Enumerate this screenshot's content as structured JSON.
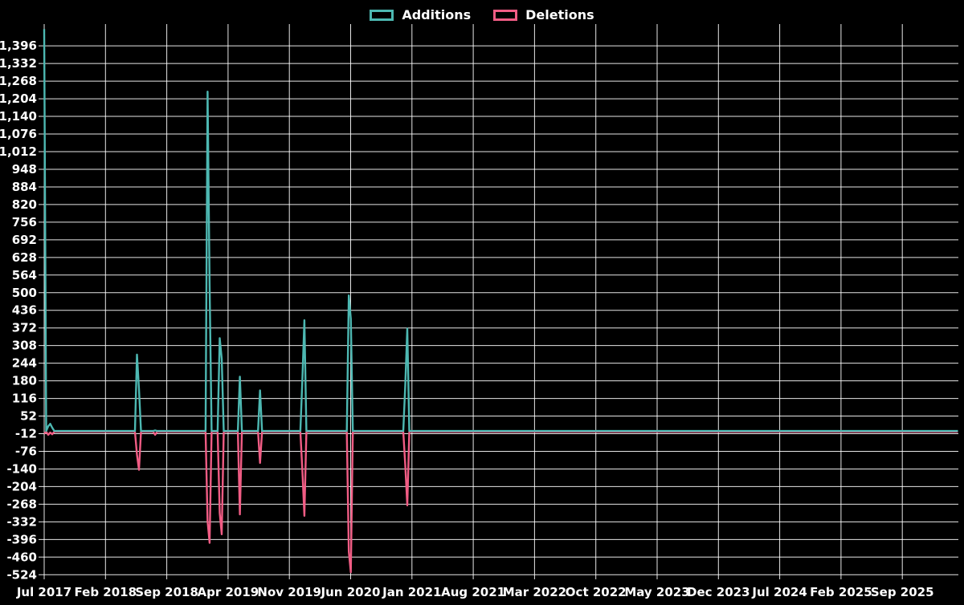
{
  "legend": {
    "items": [
      {
        "label": "Additions",
        "color": "#4db8b2"
      },
      {
        "label": "Deletions",
        "color": "#f05c84"
      }
    ]
  },
  "chart_data": {
    "type": "line",
    "title": "",
    "xlabel": "",
    "ylabel": "",
    "background_color": "#000000",
    "grid": true,
    "grid_color": "#ffffff",
    "text_color": "#ffffff",
    "legend_position": "top-center",
    "y_axis": {
      "min": -524,
      "max": 1396,
      "step": 64,
      "tick_labels": [
        "1,396",
        "1,332",
        "1,268",
        "1,204",
        "1,140",
        "1,076",
        "1,012",
        "948",
        "884",
        "820",
        "756",
        "692",
        "628",
        "564",
        "500",
        "436",
        "372",
        "308",
        "244",
        "180",
        "116",
        "52",
        "-12",
        "-76",
        "-140",
        "-204",
        "-268",
        "-332",
        "-396",
        "-460",
        "-524"
      ]
    },
    "x_axis": {
      "start": "Jul 2017",
      "end": "Sep 2025",
      "tick_interval_months": 7,
      "tick_labels": [
        "Jul 2017",
        "Feb 2018",
        "Sep 2018",
        "Apr 2019",
        "Nov 2019",
        "Jun 2020",
        "Jan 2021",
        "Aug 2021",
        "Mar 2022",
        "Oct 2022",
        "May 2023",
        "Dec 2023",
        "Jul 2024",
        "Feb 2025",
        "Sep 2025"
      ]
    },
    "series": [
      {
        "name": "Additions",
        "color": "#4db8b2",
        "baseline_value": -2
      },
      {
        "name": "Deletions",
        "color": "#f05c84",
        "baseline_value": -5
      }
    ],
    "weeks_total": 453,
    "points": [
      {
        "week": 0,
        "approx_date": "Jul 2017",
        "additions": 1457,
        "deletions": -12
      },
      {
        "week": 2,
        "approx_date": "Jul 2017",
        "additions": 15,
        "deletions": -16
      },
      {
        "week": 3,
        "approx_date": "Jul 2017",
        "additions": 24,
        "deletions": -8
      },
      {
        "week": 4,
        "approx_date": "Aug 2017",
        "additions": 10,
        "deletions": -14
      },
      {
        "week": 46,
        "approx_date": "May 2018",
        "additions": 275,
        "deletions": -88
      },
      {
        "week": 47,
        "approx_date": "Jun 2018",
        "additions": 150,
        "deletions": -143
      },
      {
        "week": 55,
        "approx_date": "Jul 2018",
        "additions": 0,
        "deletions": -16
      },
      {
        "week": 81,
        "approx_date": "Jan 2019",
        "additions": 1230,
        "deletions": -330
      },
      {
        "week": 82,
        "approx_date": "Feb 2019",
        "additions": 530,
        "deletions": -408
      },
      {
        "week": 87,
        "approx_date": "Mar 2019",
        "additions": 335,
        "deletions": -300
      },
      {
        "week": 88,
        "approx_date": "Mar 2019",
        "additions": 260,
        "deletions": -377
      },
      {
        "week": 97,
        "approx_date": "May 2019",
        "additions": 195,
        "deletions": -305
      },
      {
        "week": 107,
        "approx_date": "Jul 2019",
        "additions": 145,
        "deletions": -118
      },
      {
        "week": 128,
        "approx_date": "Dec 2019",
        "additions": 185,
        "deletions": -146
      },
      {
        "week": 129,
        "approx_date": "Dec 2019",
        "additions": 400,
        "deletions": -310
      },
      {
        "week": 151,
        "approx_date": "May 2020",
        "additions": 490,
        "deletions": -440
      },
      {
        "week": 152,
        "approx_date": "Jun 2020",
        "additions": 405,
        "deletions": -515
      },
      {
        "week": 179,
        "approx_date": "Dec 2020",
        "additions": 165,
        "deletions": -127
      },
      {
        "week": 180,
        "approx_date": "Dec 2020",
        "additions": 370,
        "deletions": -272
      }
    ]
  }
}
